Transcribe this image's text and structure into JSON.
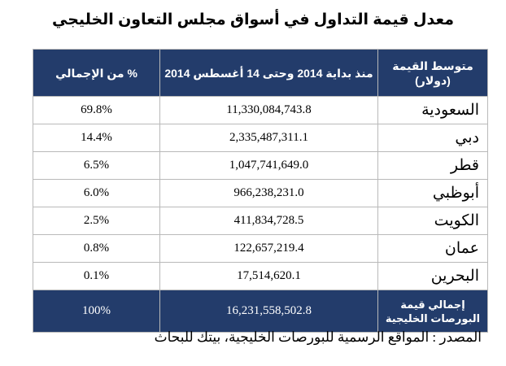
{
  "title": "معدل قيمة التداول في أسواق مجلس التعاون الخليجي",
  "table": {
    "headers": {
      "name": "متوسط القيمة (دولار)",
      "value": "منذ بداية 2014 وحتى 14 أغسطس 2014",
      "percent": "% من الإجمالي"
    },
    "rows": [
      {
        "name": "السعودية",
        "value": "11,330,084,743.8",
        "percent": "69.8%"
      },
      {
        "name": "دبي",
        "value": "2,335,487,311.1",
        "percent": "14.4%"
      },
      {
        "name": "قطر",
        "value": "1,047,741,649.0",
        "percent": "6.5%"
      },
      {
        "name": "أبوظبي",
        "value": "966,238,231.0",
        "percent": "6.0%"
      },
      {
        "name": "الكويت",
        "value": "411,834,728.5",
        "percent": "2.5%"
      },
      {
        "name": "عمان",
        "value": "122,657,219.4",
        "percent": "0.8%"
      },
      {
        "name": "البحرين",
        "value": "17,514,620.1",
        "percent": "0.1%"
      }
    ],
    "total": {
      "name": "إجمالي قيمة البورصات الخليجية",
      "value": "16,231,558,502.8",
      "percent": "100%"
    }
  },
  "source": "المصدر : المواقع الرسمية للبورصات الخليجية، بيتك للبحاث",
  "colors": {
    "header_bg": "#233c6b",
    "header_text": "#ffffff",
    "grid": "#b9b9b9"
  }
}
